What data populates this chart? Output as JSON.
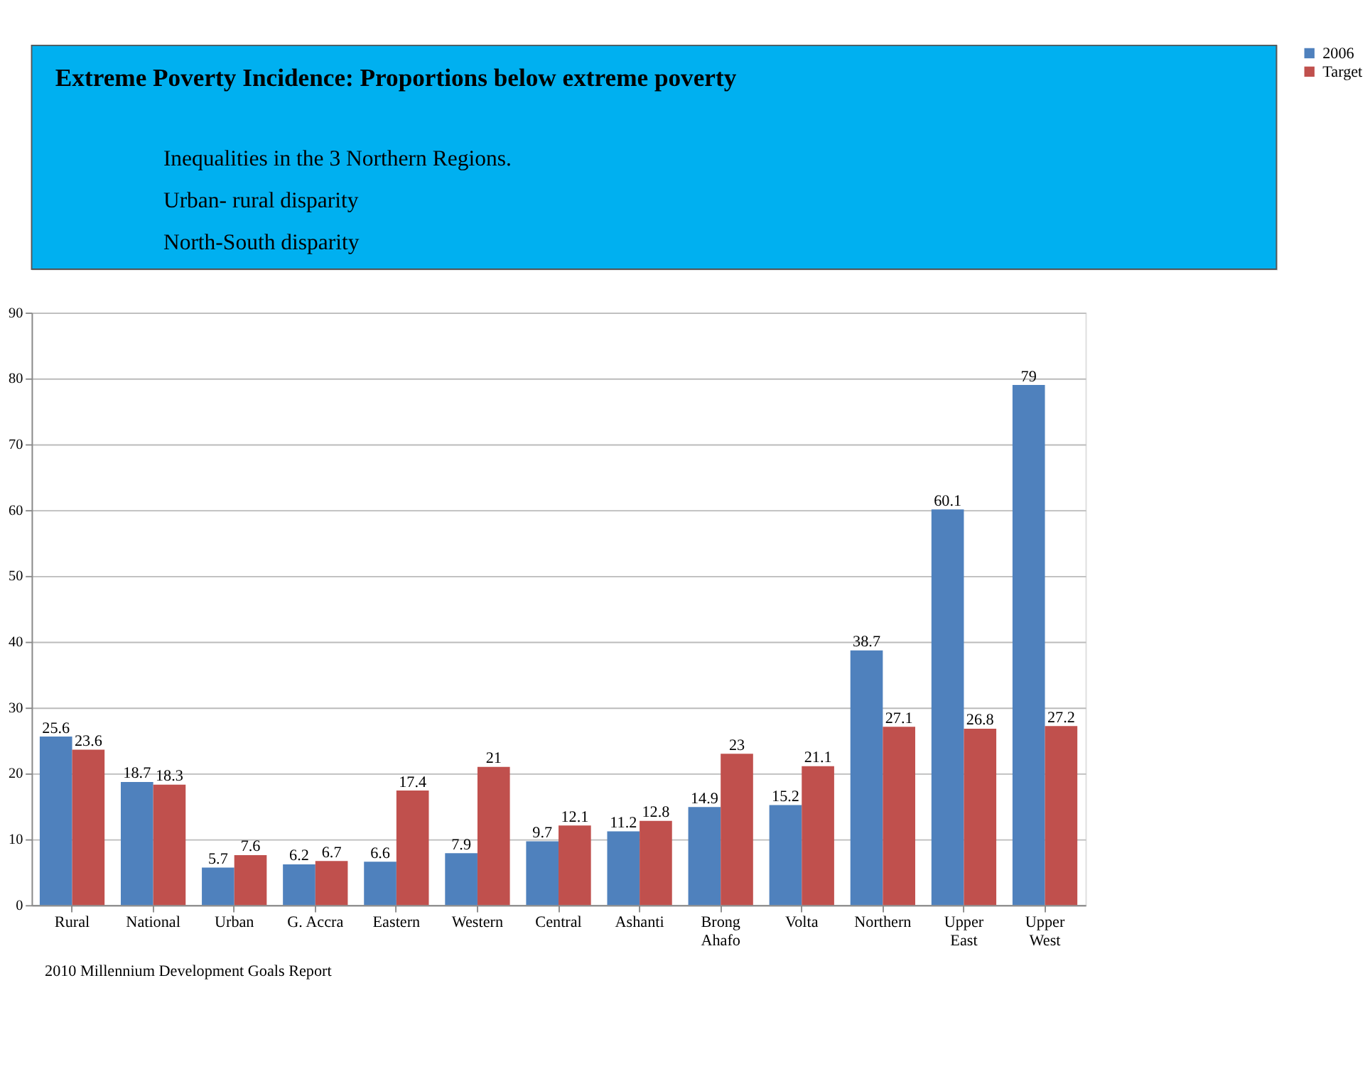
{
  "chart_data": {
    "type": "bar",
    "title": "Extreme Poverty Incidence: Proportions below extreme poverty",
    "subtitle": "Inequalities in the 3 Northern Regions.",
    "annotations": [
      "Urban- rural disparity",
      "North-South disparity",
      "2010 Millennium Development   Goals Report"
    ],
    "categories": [
      "Rural",
      "National",
      "Urban",
      "G. Accra",
      "Eastern",
      "Western",
      "Central",
      "Ashanti",
      "Brong Ahafo",
      "Volta",
      "Northern",
      "Upper East",
      "Upper West"
    ],
    "series": [
      {
        "name": "2006",
        "color": "#4f81bd",
        "values": [
          25.6,
          18.7,
          5.7,
          6.2,
          6.6,
          7.9,
          9.7,
          11.2,
          14.9,
          15.2,
          38.7,
          60.1,
          79
        ]
      },
      {
        "name": "Target",
        "color": "#c0504d",
        "values": [
          23.6,
          18.3,
          7.6,
          6.7,
          17.4,
          21,
          12.1,
          12.8,
          23,
          21.1,
          27.1,
          26.8,
          27.2
        ]
      }
    ],
    "ylim": [
      0,
      90
    ],
    "yticks": [
      0,
      10,
      20,
      30,
      40,
      50,
      60,
      70,
      80,
      90
    ],
    "grid": "y",
    "legend": "right",
    "data_labels": true
  }
}
